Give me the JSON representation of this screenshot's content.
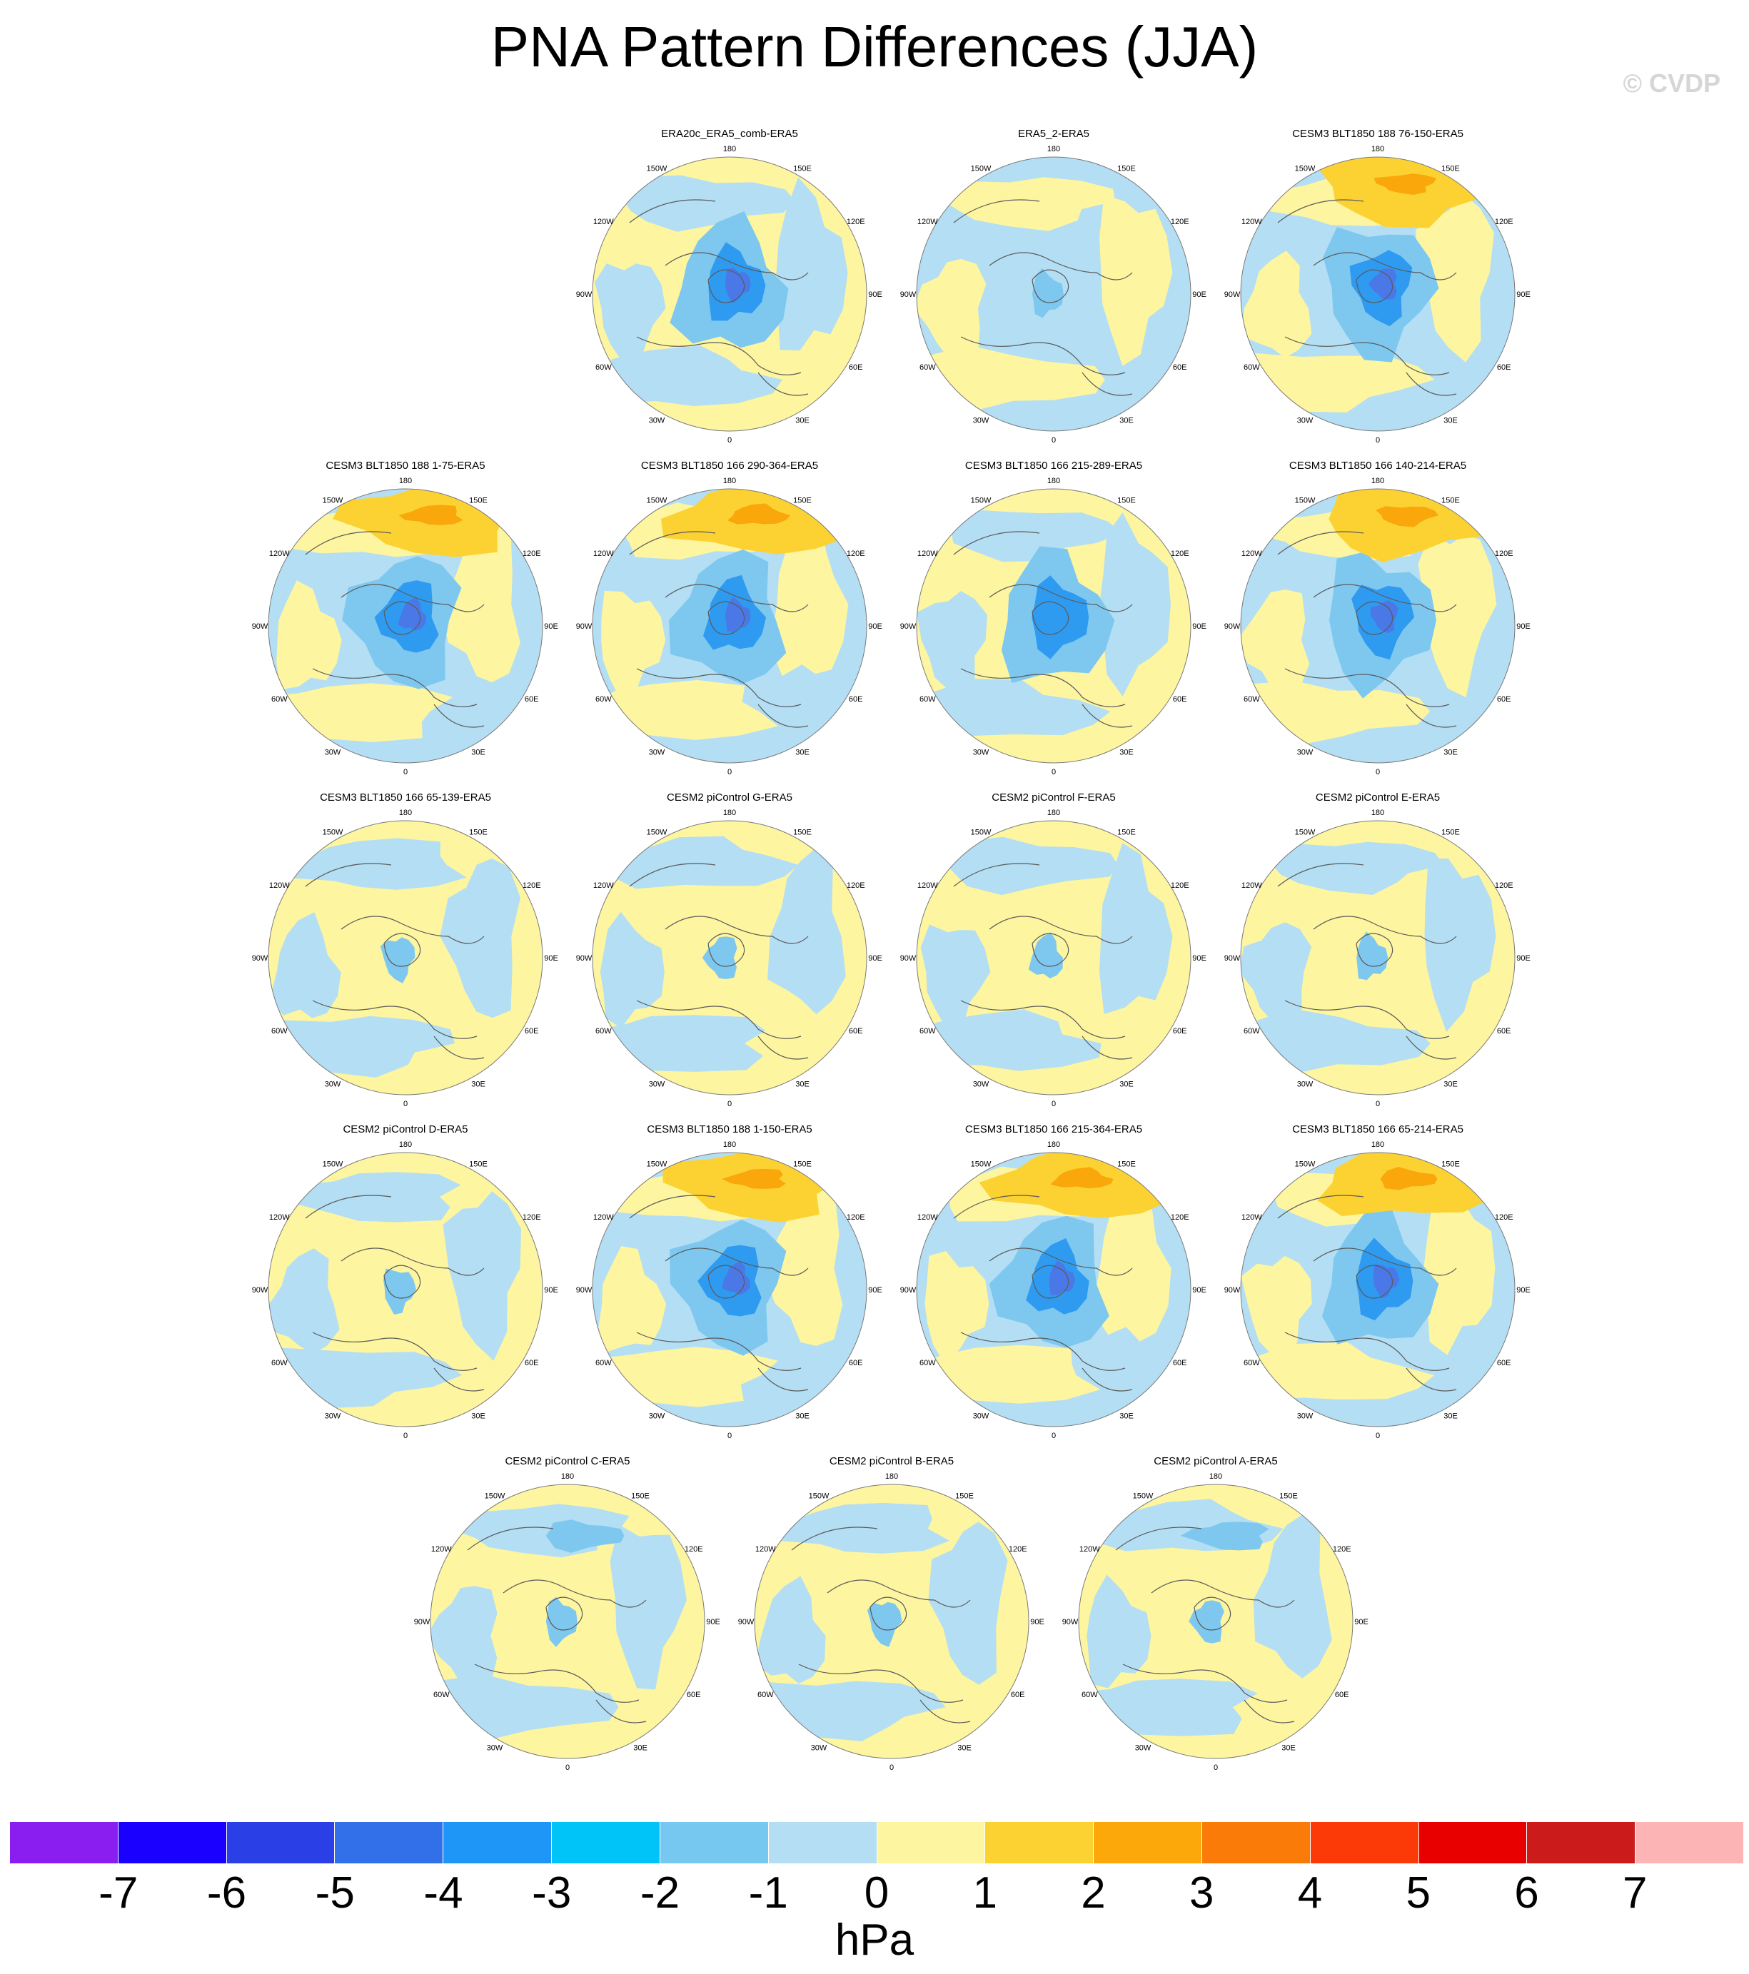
{
  "title": "PNA Pattern Differences (JJA)",
  "watermark": "© CVDP",
  "units": "hPa",
  "palette": {
    "deep_blue": "#4a78e6",
    "mid_blue": "#2f9bf0",
    "light_blue": "#7ec8f0",
    "pale_blue": "#b4def3",
    "pale_yellow": "#fdf5a0",
    "yellow": "#fcd233",
    "orange": "#f9a70b",
    "coast": "#5a5a5a"
  },
  "lon_labels": [
    "180",
    "150E",
    "120E",
    "90E",
    "60E",
    "30E",
    "0",
    "30W",
    "60W",
    "90W",
    "120W",
    "150W"
  ],
  "colorbar": {
    "colors": [
      "#8a1ef0",
      "#1a00ff",
      "#2a3fe6",
      "#3170e8",
      "#1e96f8",
      "#00c4f8",
      "#76c8f1",
      "#b4def3",
      "#fdf5a0",
      "#fcd233",
      "#fca80b",
      "#fb7b09",
      "#fb3a08",
      "#e80000",
      "#cc1b1b",
      "#fdb4b4"
    ],
    "labels": [
      "-7",
      "-6",
      "-5",
      "-4",
      "-3",
      "-2",
      "-1",
      "0",
      "1",
      "2",
      "3",
      "4",
      "5",
      "6",
      "7"
    ]
  },
  "panels": [
    {
      "title": "ERA20c_ERA5_comb-ERA5",
      "base": "pale_yellow",
      "pattern": "low_strong_center"
    },
    {
      "title": "ERA5_2-ERA5",
      "base": "pale_blue",
      "pattern": "weak"
    },
    {
      "title": "CESM3 BLT1850 188 76-150-ERA5",
      "base": "pale_blue",
      "pattern": "low_strong_with_pacific_high"
    },
    {
      "title": "CESM3 BLT1850 188 1-75-ERA5",
      "base": "pale_blue",
      "pattern": "low_strong_with_pacific_high"
    },
    {
      "title": "CESM3 BLT1850 166 290-364-ERA5",
      "base": "pale_blue",
      "pattern": "low_strong_with_pacific_high"
    },
    {
      "title": "CESM3 BLT1850 166 215-289-ERA5",
      "base": "pale_yellow",
      "pattern": "low_moderate"
    },
    {
      "title": "CESM3 BLT1850 166 140-214-ERA5",
      "base": "pale_blue",
      "pattern": "low_strong_with_pacific_high"
    },
    {
      "title": "CESM3 BLT1850 166 65-139-ERA5",
      "base": "pale_yellow",
      "pattern": "weak"
    },
    {
      "title": "CESM2 piControl G-ERA5",
      "base": "pale_yellow",
      "pattern": "weak"
    },
    {
      "title": "CESM2 piControl F-ERA5",
      "base": "pale_yellow",
      "pattern": "weak"
    },
    {
      "title": "CESM2 piControl E-ERA5",
      "base": "pale_yellow",
      "pattern": "weak"
    },
    {
      "title": "CESM2 piControl D-ERA5",
      "base": "pale_yellow",
      "pattern": "weak"
    },
    {
      "title": "CESM3 BLT1850 188 1-150-ERA5",
      "base": "pale_blue",
      "pattern": "low_strong_with_pacific_high"
    },
    {
      "title": "CESM3 BLT1850 166 215-364-ERA5",
      "base": "pale_blue",
      "pattern": "low_strong_with_pacific_high"
    },
    {
      "title": "CESM3 BLT1850 166 65-214-ERA5",
      "base": "pale_blue",
      "pattern": "low_strong_with_pacific_high"
    },
    {
      "title": "CESM2 piControl C-ERA5",
      "base": "pale_yellow",
      "pattern": "weak_pacific_low"
    },
    {
      "title": "CESM2 piControl B-ERA5",
      "base": "pale_yellow",
      "pattern": "weak"
    },
    {
      "title": "CESM2 piControl A-ERA5",
      "base": "pale_yellow",
      "pattern": "weak_pacific_low"
    }
  ]
}
